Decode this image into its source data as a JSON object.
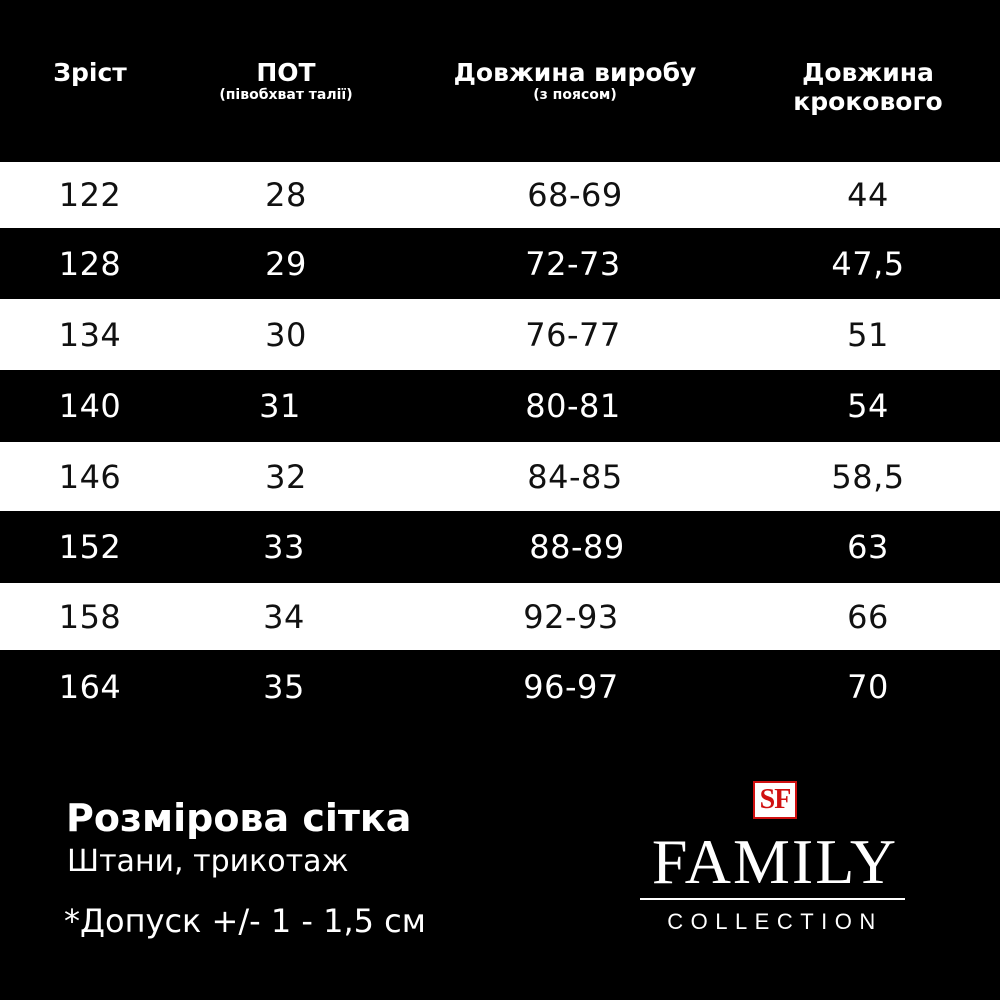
{
  "header": {
    "col1": {
      "main": "Зріст",
      "sub": ""
    },
    "col2": {
      "main": "ПОТ",
      "sub": "(півобхват талії)"
    },
    "col3": {
      "main": "Довжина виробу",
      "sub": "(з поясом)"
    },
    "col4": {
      "main": "Довжина",
      "main2": "крокового"
    }
  },
  "rows": [
    [
      "122",
      "28",
      "68-69",
      "44"
    ],
    [
      "128",
      "29",
      "72-73",
      "47,5"
    ],
    [
      "134",
      "30",
      "76-77",
      "51"
    ],
    [
      "140",
      "31",
      "80-81",
      "54"
    ],
    [
      "146",
      "32",
      "84-85",
      "58,5"
    ],
    [
      "152",
      "33",
      "88-89",
      "63"
    ],
    [
      "158",
      "34",
      "92-93",
      "66"
    ],
    [
      "164",
      "35",
      "96-97",
      "70"
    ]
  ],
  "footer": {
    "title": "Розмірова сітка",
    "subtitle": "Штани, трикотаж",
    "tolerance": "*Допуск +/-  1 - 1,5 см"
  },
  "logo": {
    "mark": "SF",
    "brand": "FAMILY",
    "sub": "COLLECTION"
  },
  "colors": {
    "background": "#000000",
    "row_light": "#ffffff",
    "text_light": "#ffffff",
    "text_dark": "#111111",
    "logo_red": "#d01010"
  }
}
